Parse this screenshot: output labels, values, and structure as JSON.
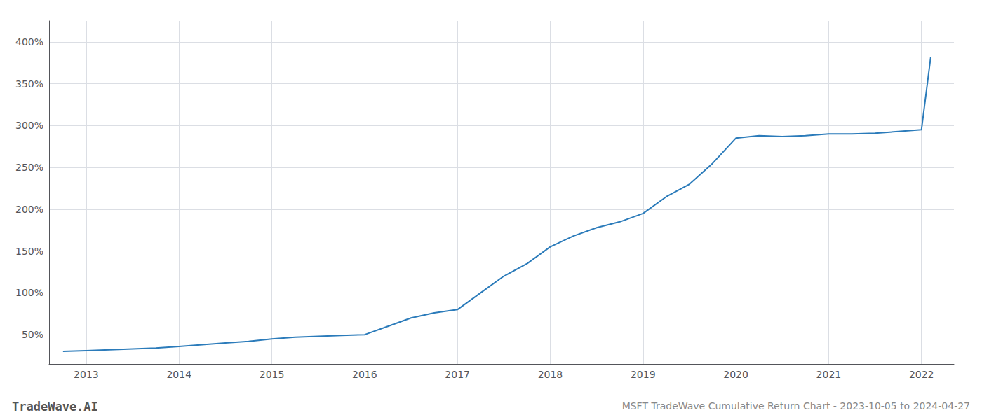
{
  "chart_data": {
    "type": "line",
    "title": "MSFT TradeWave Cumulative Return Chart - 2023-10-05 to 2024-04-27",
    "annotations": [
      "TradeWave.AI"
    ],
    "x": [
      2012.75,
      2013.0,
      2013.25,
      2013.5,
      2013.75,
      2014.0,
      2014.25,
      2014.5,
      2014.75,
      2015.0,
      2015.25,
      2015.5,
      2015.75,
      2016.0,
      2016.25,
      2016.5,
      2016.75,
      2017.0,
      2017.25,
      2017.5,
      2017.75,
      2018.0,
      2018.25,
      2018.5,
      2018.75,
      2019.0,
      2019.25,
      2019.5,
      2019.75,
      2020.0,
      2020.25,
      2020.5,
      2020.75,
      2021.0,
      2021.25,
      2021.5,
      2021.75,
      2022.0,
      2022.1
    ],
    "values": [
      30,
      31,
      32,
      33,
      34,
      36,
      38,
      40,
      42,
      45,
      47,
      48,
      49,
      50,
      60,
      70,
      76,
      80,
      100,
      120,
      135,
      155,
      168,
      178,
      185,
      195,
      215,
      230,
      255,
      285,
      288,
      287,
      288,
      290,
      290,
      291,
      293,
      295,
      382
    ],
    "color": "#2b7bba",
    "xlim": [
      2012.6,
      2022.35
    ],
    "xticks": [
      2013,
      2014,
      2015,
      2016,
      2017,
      2018,
      2019,
      2020,
      2021,
      2022
    ],
    "ylim": [
      15,
      425
    ],
    "yticks": [
      {
        "value": 50,
        "label": "50%"
      },
      {
        "value": 100,
        "label": "100%"
      },
      {
        "value": 150,
        "label": "150%"
      },
      {
        "value": 200,
        "label": "200%"
      },
      {
        "value": 250,
        "label": "250%"
      },
      {
        "value": 300,
        "label": "300%"
      },
      {
        "value": 350,
        "label": "350%"
      },
      {
        "value": 400,
        "label": "400%"
      }
    ],
    "grid": true
  }
}
